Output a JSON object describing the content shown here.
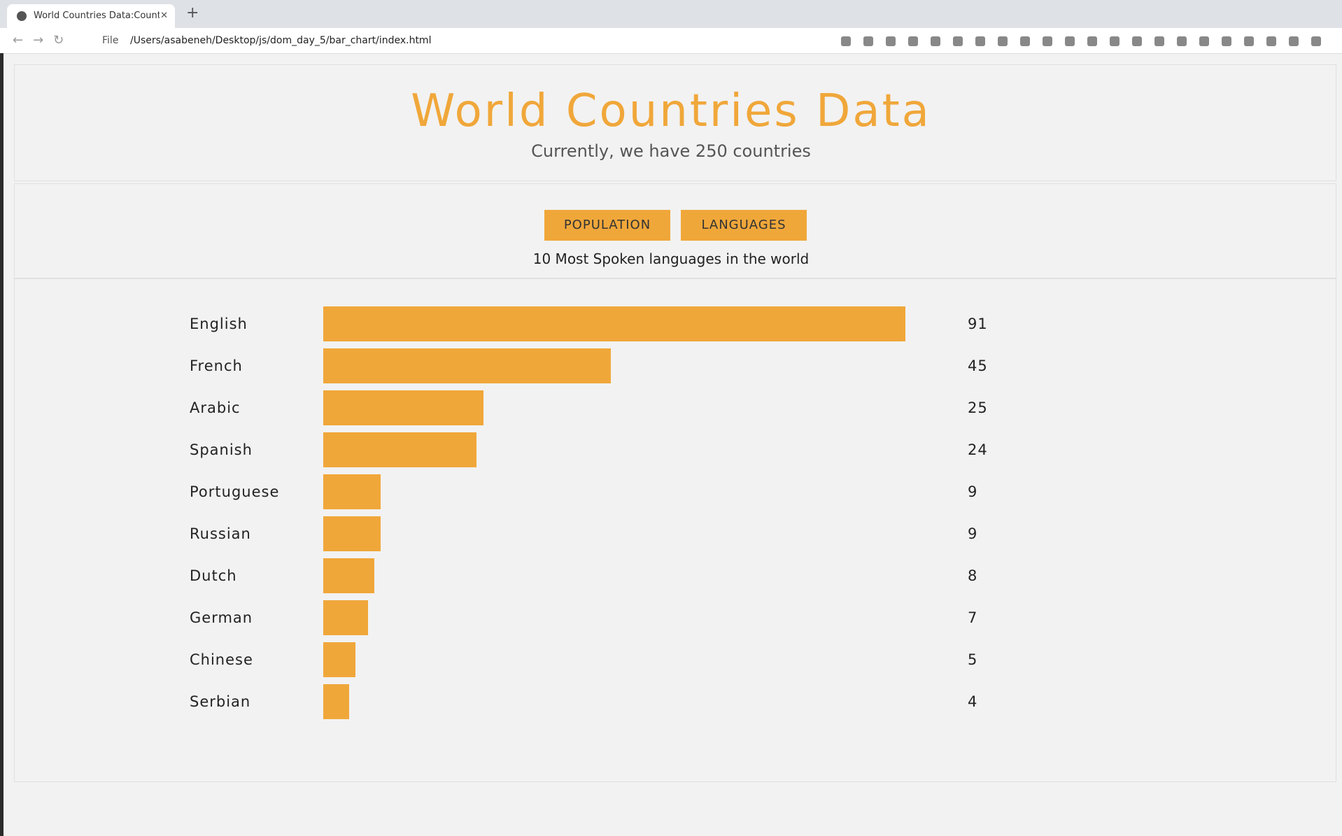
{
  "browser": {
    "tab_title": "World Countries Data:Countri",
    "url_scheme": "File",
    "url": "/Users/asabeneh/Desktop/js/dom_day_5/bar_chart/index.html"
  },
  "header": {
    "title": "World Countries Data",
    "subtitle": "Currently, we have 250 countries"
  },
  "buttons": [
    "POPULATION",
    "LANGUAGES"
  ],
  "chart_data": {
    "type": "bar",
    "title": "10 Most Spoken languages in the world",
    "categories": [
      "English",
      "French",
      "Arabic",
      "Spanish",
      "Portuguese",
      "Russian",
      "Dutch",
      "German",
      "Chinese",
      "Serbian"
    ],
    "values": [
      91,
      45,
      25,
      24,
      9,
      9,
      8,
      7,
      5,
      4
    ],
    "color": "#f0a73a"
  }
}
